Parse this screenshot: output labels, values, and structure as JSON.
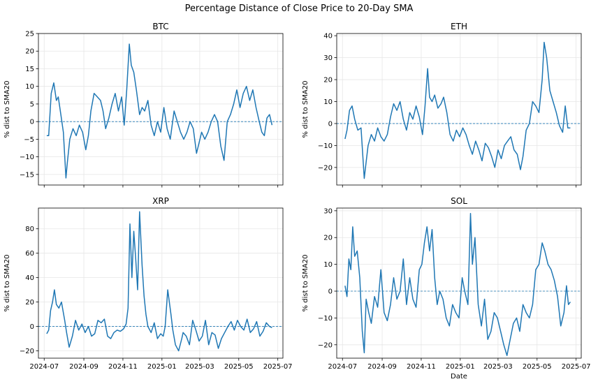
{
  "figure": {
    "title": "Percentage Distance of Close Price to 20-Day SMA"
  },
  "colors": {
    "line": "#1f77b4",
    "zero_line": "#1f77b4",
    "grid": "#e6e6e6"
  },
  "chart_data": [
    {
      "type": "line",
      "title": "BTC",
      "xlabel": "",
      "ylabel": "% dist to SMA20",
      "ylim": [
        -18,
        25
      ],
      "yticks": [
        -15,
        -10,
        -5,
        0,
        5,
        10,
        15,
        20,
        25
      ],
      "xlim": [
        "2024-06-22",
        "2025-07-09"
      ],
      "xticks": [],
      "reference_line": 0,
      "grid": true,
      "series": [
        {
          "x": [
            "2024-07-05",
            "2024-07-08",
            "2024-07-12",
            "2024-07-16",
            "2024-07-20",
            "2024-07-23",
            "2024-07-27",
            "2024-07-31",
            "2024-08-04",
            "2024-08-06",
            "2024-08-10",
            "2024-08-15",
            "2024-08-20",
            "2024-08-25",
            "2024-08-30",
            "2024-09-04",
            "2024-09-08",
            "2024-09-12",
            "2024-09-17",
            "2024-09-22",
            "2024-09-27",
            "2024-10-01",
            "2024-10-05",
            "2024-10-10",
            "2024-10-15",
            "2024-10-20",
            "2024-10-25",
            "2024-10-30",
            "2024-11-03",
            "2024-11-07",
            "2024-11-11",
            "2024-11-14",
            "2024-11-18",
            "2024-11-22",
            "2024-11-27",
            "2024-12-01",
            "2024-12-05",
            "2024-12-10",
            "2024-12-15",
            "2024-12-20",
            "2024-12-25",
            "2024-12-30",
            "2025-01-04",
            "2025-01-09",
            "2025-01-14",
            "2025-01-20",
            "2025-01-25",
            "2025-01-30",
            "2025-02-04",
            "2025-02-09",
            "2025-02-14",
            "2025-02-19",
            "2025-02-24",
            "2025-02-28",
            "2025-03-04",
            "2025-03-09",
            "2025-03-14",
            "2025-03-19",
            "2025-03-24",
            "2025-03-29",
            "2025-04-03",
            "2025-04-08",
            "2025-04-13",
            "2025-04-18",
            "2025-04-23",
            "2025-04-28",
            "2025-05-03",
            "2025-05-08",
            "2025-05-13",
            "2025-05-18",
            "2025-05-23",
            "2025-05-28",
            "2025-06-02",
            "2025-06-06",
            "2025-06-10",
            "2025-06-14",
            "2025-06-18",
            "2025-06-22"
          ],
          "y": [
            -4,
            -4,
            8,
            11,
            6,
            7,
            2,
            -3,
            -16,
            -12,
            -5,
            -2,
            -4,
            -1,
            -3,
            -8,
            -4,
            3,
            8,
            7,
            6,
            3,
            -2,
            1,
            5,
            8,
            3,
            7,
            -1,
            9,
            22,
            16,
            14,
            9,
            2,
            4,
            3,
            6,
            -1,
            -4,
            0,
            -3,
            4,
            -2,
            -5,
            3,
            0,
            -3,
            -5,
            -3,
            0,
            -2,
            -9,
            -6,
            -3,
            -5,
            -3,
            0,
            2,
            0,
            -7,
            -11,
            0,
            2,
            5,
            9,
            4,
            8,
            10,
            6,
            9,
            4,
            0,
            -3,
            -4,
            1,
            2,
            -1
          ]
        }
      ]
    },
    {
      "type": "line",
      "title": "ETH",
      "xlabel": "",
      "ylabel": "% dist to SMA20",
      "ylim": [
        -28,
        41
      ],
      "yticks": [
        -20,
        -10,
        0,
        10,
        20,
        30,
        40
      ],
      "xlim": [
        "2024-06-22",
        "2025-07-09"
      ],
      "xticks": [],
      "reference_line": 0,
      "grid": true,
      "series": [
        {
          "x": [
            "2024-07-05",
            "2024-07-08",
            "2024-07-12",
            "2024-07-16",
            "2024-07-20",
            "2024-07-25",
            "2024-07-30",
            "2024-08-04",
            "2024-08-06",
            "2024-08-10",
            "2024-08-15",
            "2024-08-20",
            "2024-08-25",
            "2024-08-30",
            "2024-09-04",
            "2024-09-09",
            "2024-09-14",
            "2024-09-19",
            "2024-09-24",
            "2024-09-29",
            "2024-10-04",
            "2024-10-09",
            "2024-10-14",
            "2024-10-19",
            "2024-10-24",
            "2024-10-29",
            "2024-11-03",
            "2024-11-07",
            "2024-11-11",
            "2024-11-14",
            "2024-11-18",
            "2024-11-22",
            "2024-11-27",
            "2024-12-02",
            "2024-12-06",
            "2024-12-11",
            "2024-12-16",
            "2024-12-21",
            "2024-12-26",
            "2024-12-31",
            "2025-01-05",
            "2025-01-10",
            "2025-01-15",
            "2025-01-20",
            "2025-01-25",
            "2025-01-30",
            "2025-02-04",
            "2025-02-09",
            "2025-02-14",
            "2025-02-19",
            "2025-02-24",
            "2025-03-01",
            "2025-03-06",
            "2025-03-11",
            "2025-03-16",
            "2025-03-21",
            "2025-03-26",
            "2025-03-31",
            "2025-04-05",
            "2025-04-09",
            "2025-04-14",
            "2025-04-19",
            "2025-04-24",
            "2025-04-29",
            "2025-05-04",
            "2025-05-09",
            "2025-05-12",
            "2025-05-16",
            "2025-05-21",
            "2025-05-26",
            "2025-05-31",
            "2025-06-05",
            "2025-06-10",
            "2025-06-14",
            "2025-06-18",
            "2025-06-22"
          ],
          "y": [
            -7,
            -3,
            6,
            8,
            2,
            -3,
            -2,
            -25,
            -20,
            -10,
            -5,
            -8,
            -2,
            -6,
            -8,
            -5,
            3,
            9,
            6,
            10,
            2,
            -3,
            5,
            2,
            8,
            3,
            -5,
            8,
            25,
            12,
            10,
            13,
            7,
            9,
            12,
            5,
            -5,
            -8,
            -3,
            -6,
            -2,
            -5,
            -10,
            -14,
            -8,
            -12,
            -17,
            -9,
            -11,
            -15,
            -20,
            -12,
            -16,
            -10,
            -8,
            -6,
            -12,
            -14,
            -21,
            -15,
            -3,
            0,
            10,
            8,
            5,
            20,
            37,
            30,
            15,
            10,
            5,
            -1,
            -4,
            8,
            -2,
            -2
          ]
        }
      ]
    },
    {
      "type": "line",
      "title": "XRP",
      "xlabel": "",
      "ylabel": "% dist to SMA20",
      "ylim": [
        -26,
        97
      ],
      "yticks": [
        -20,
        0,
        20,
        40,
        60,
        80
      ],
      "xlim": [
        "2024-06-22",
        "2025-07-09"
      ],
      "xticks": [
        "2024-07",
        "2024-09",
        "2024-11",
        "2025-01",
        "2025-03",
        "2025-05",
        "2025-07"
      ],
      "reference_line": 0,
      "grid": true,
      "series": [
        {
          "x": [
            "2024-07-05",
            "2024-07-08",
            "2024-07-11",
            "2024-07-14",
            "2024-07-17",
            "2024-07-20",
            "2024-07-24",
            "2024-07-28",
            "2024-08-02",
            "2024-08-05",
            "2024-08-09",
            "2024-08-14",
            "2024-08-19",
            "2024-08-24",
            "2024-08-29",
            "2024-09-03",
            "2024-09-08",
            "2024-09-13",
            "2024-09-18",
            "2024-09-23",
            "2024-09-28",
            "2024-10-03",
            "2024-10-08",
            "2024-10-13",
            "2024-10-18",
            "2024-10-23",
            "2024-10-28",
            "2024-11-02",
            "2024-11-06",
            "2024-11-09",
            "2024-11-12",
            "2024-11-15",
            "2024-11-18",
            "2024-11-21",
            "2024-11-24",
            "2024-11-27",
            "2024-12-01",
            "2024-12-04",
            "2024-12-07",
            "2024-12-10",
            "2024-12-15",
            "2024-12-20",
            "2024-12-25",
            "2024-12-30",
            "2025-01-03",
            "2025-01-06",
            "2025-01-10",
            "2025-01-15",
            "2025-01-18",
            "2025-01-22",
            "2025-01-27",
            "2025-02-01",
            "2025-02-03",
            "2025-02-08",
            "2025-02-13",
            "2025-02-18",
            "2025-02-23",
            "2025-02-28",
            "2025-03-05",
            "2025-03-10",
            "2025-03-15",
            "2025-03-20",
            "2025-03-25",
            "2025-03-30",
            "2025-04-04",
            "2025-04-09",
            "2025-04-14",
            "2025-04-19",
            "2025-04-24",
            "2025-04-29",
            "2025-05-04",
            "2025-05-09",
            "2025-05-14",
            "2025-05-19",
            "2025-05-24",
            "2025-05-29",
            "2025-06-03",
            "2025-06-08",
            "2025-06-13",
            "2025-06-18",
            "2025-06-22"
          ],
          "y": [
            -6,
            -3,
            13,
            20,
            30,
            18,
            15,
            20,
            5,
            -5,
            -17,
            -8,
            5,
            -3,
            2,
            -5,
            0,
            -8,
            -6,
            5,
            3,
            6,
            -8,
            -10,
            -5,
            -3,
            -4,
            -2,
            2,
            15,
            84,
            40,
            78,
            55,
            30,
            94,
            50,
            25,
            10,
            0,
            -5,
            3,
            -10,
            -6,
            -8,
            0,
            30,
            10,
            -3,
            -15,
            -20,
            -10,
            -5,
            -8,
            -15,
            5,
            -3,
            -12,
            -8,
            5,
            -15,
            -5,
            -7,
            -18,
            -10,
            -5,
            0,
            4,
            -3,
            5,
            0,
            -3,
            6,
            -5,
            -2,
            4,
            -8,
            -4,
            3,
            0,
            -1
          ]
        }
      ]
    },
    {
      "type": "line",
      "title": "SOL",
      "xlabel": "Date",
      "ylabel": "% dist to SMA20",
      "ylim": [
        -25,
        31
      ],
      "yticks": [
        -20,
        -10,
        0,
        10,
        20,
        30
      ],
      "xlim": [
        "2024-06-22",
        "2025-07-09"
      ],
      "xticks": [
        "2024-07",
        "2024-09",
        "2024-11",
        "2025-01",
        "2025-03",
        "2025-05",
        "2025-07"
      ],
      "reference_line": 0,
      "grid": true,
      "series": [
        {
          "x": [
            "2024-07-05",
            "2024-07-08",
            "2024-07-11",
            "2024-07-14",
            "2024-07-17",
            "2024-07-20",
            "2024-07-24",
            "2024-07-28",
            "2024-08-01",
            "2024-08-04",
            "2024-08-07",
            "2024-08-11",
            "2024-08-15",
            "2024-08-20",
            "2024-08-25",
            "2024-08-30",
            "2024-09-04",
            "2024-09-09",
            "2024-09-14",
            "2024-09-19",
            "2024-09-24",
            "2024-09-29",
            "2024-10-04",
            "2024-10-09",
            "2024-10-14",
            "2024-10-19",
            "2024-10-24",
            "2024-10-29",
            "2024-11-02",
            "2024-11-06",
            "2024-11-10",
            "2024-11-14",
            "2024-11-18",
            "2024-11-22",
            "2024-11-26",
            "2024-11-30",
            "2024-12-05",
            "2024-12-10",
            "2024-12-15",
            "2024-12-20",
            "2024-12-25",
            "2024-12-30",
            "2025-01-04",
            "2025-01-08",
            "2025-01-13",
            "2025-01-17",
            "2025-01-20",
            "2025-01-24",
            "2025-01-29",
            "2025-02-03",
            "2025-02-08",
            "2025-02-13",
            "2025-02-18",
            "2025-02-23",
            "2025-02-28",
            "2025-03-05",
            "2025-03-10",
            "2025-03-15",
            "2025-03-20",
            "2025-03-25",
            "2025-03-30",
            "2025-04-04",
            "2025-04-09",
            "2025-04-14",
            "2025-04-19",
            "2025-04-24",
            "2025-04-29",
            "2025-05-04",
            "2025-05-09",
            "2025-05-13",
            "2025-05-18",
            "2025-05-23",
            "2025-05-28",
            "2025-06-02",
            "2025-06-07",
            "2025-06-12",
            "2025-06-16",
            "2025-06-19",
            "2025-06-22"
          ],
          "y": [
            2,
            -2,
            12,
            8,
            24,
            13,
            15,
            5,
            -15,
            -23,
            -3,
            -8,
            -12,
            -2,
            -6,
            8,
            -8,
            -11,
            -5,
            5,
            -3,
            0,
            12,
            -5,
            5,
            -3,
            -6,
            8,
            10,
            18,
            24,
            15,
            23,
            5,
            -5,
            0,
            -3,
            -10,
            -13,
            -5,
            -8,
            -10,
            5,
            0,
            -5,
            29,
            10,
            20,
            -5,
            -13,
            -3,
            -18,
            -15,
            -8,
            -10,
            -15,
            -20,
            -24,
            -18,
            -12,
            -10,
            -15,
            -5,
            -8,
            -10,
            -5,
            8,
            10,
            18,
            15,
            10,
            8,
            4,
            -2,
            -13,
            -8,
            2,
            -5,
            -4
          ]
        }
      ]
    }
  ]
}
